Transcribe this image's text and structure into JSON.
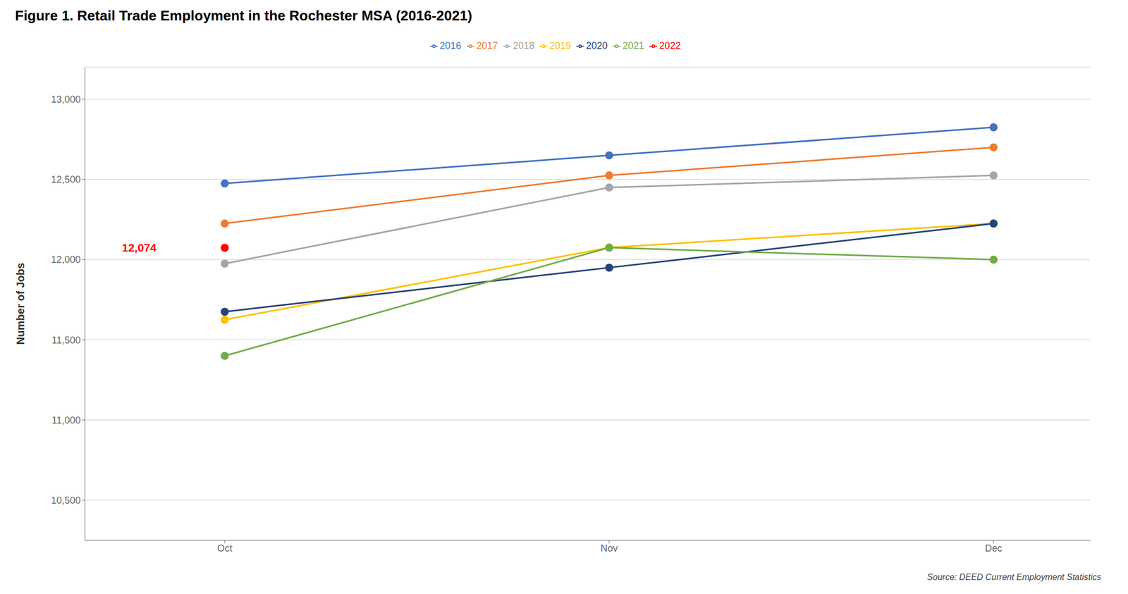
{
  "chart_data": {
    "type": "line",
    "title": "Figure 1. Retail Trade Employment in the Rochester MSA (2016-2021)",
    "ylabel": "Number of Jobs",
    "source": "Source: DEED Current Employment Statistics",
    "categories": [
      "Oct",
      "Nov",
      "Dec"
    ],
    "series": [
      {
        "name": "2016",
        "color": "#4472C4",
        "values": [
          12475,
          12650,
          12825
        ]
      },
      {
        "name": "2017",
        "color": "#ED7D31",
        "values": [
          12225,
          12525,
          12700
        ]
      },
      {
        "name": "2018",
        "color": "#A5A5A5",
        "values": [
          11975,
          12450,
          12525
        ]
      },
      {
        "name": "2019",
        "color": "#FFC000",
        "values": [
          11625,
          12075,
          12225
        ]
      },
      {
        "name": "2020",
        "color": "#264478",
        "values": [
          11675,
          11950,
          12225
        ]
      },
      {
        "name": "2021",
        "color": "#70AD47",
        "values": [
          11400,
          12075,
          12000
        ]
      },
      {
        "name": "2022",
        "color": "#FF0000",
        "values": [
          12074,
          null,
          null
        ]
      }
    ],
    "annotations": [
      {
        "text": "12,074",
        "x": "Oct",
        "y": 12074,
        "color": "#FF0000"
      }
    ],
    "ylim": [
      10250,
      13200
    ],
    "yticks": [
      {
        "value": 10500,
        "label": "10,500"
      },
      {
        "value": 11000,
        "label": "11,000"
      },
      {
        "value": 11500,
        "label": "11,500"
      },
      {
        "value": 12000,
        "label": "12,000"
      },
      {
        "value": 12500,
        "label": "12,500"
      },
      {
        "value": 13000,
        "label": "13,000"
      }
    ],
    "grid": true,
    "legend": "top",
    "marker": "circle"
  }
}
